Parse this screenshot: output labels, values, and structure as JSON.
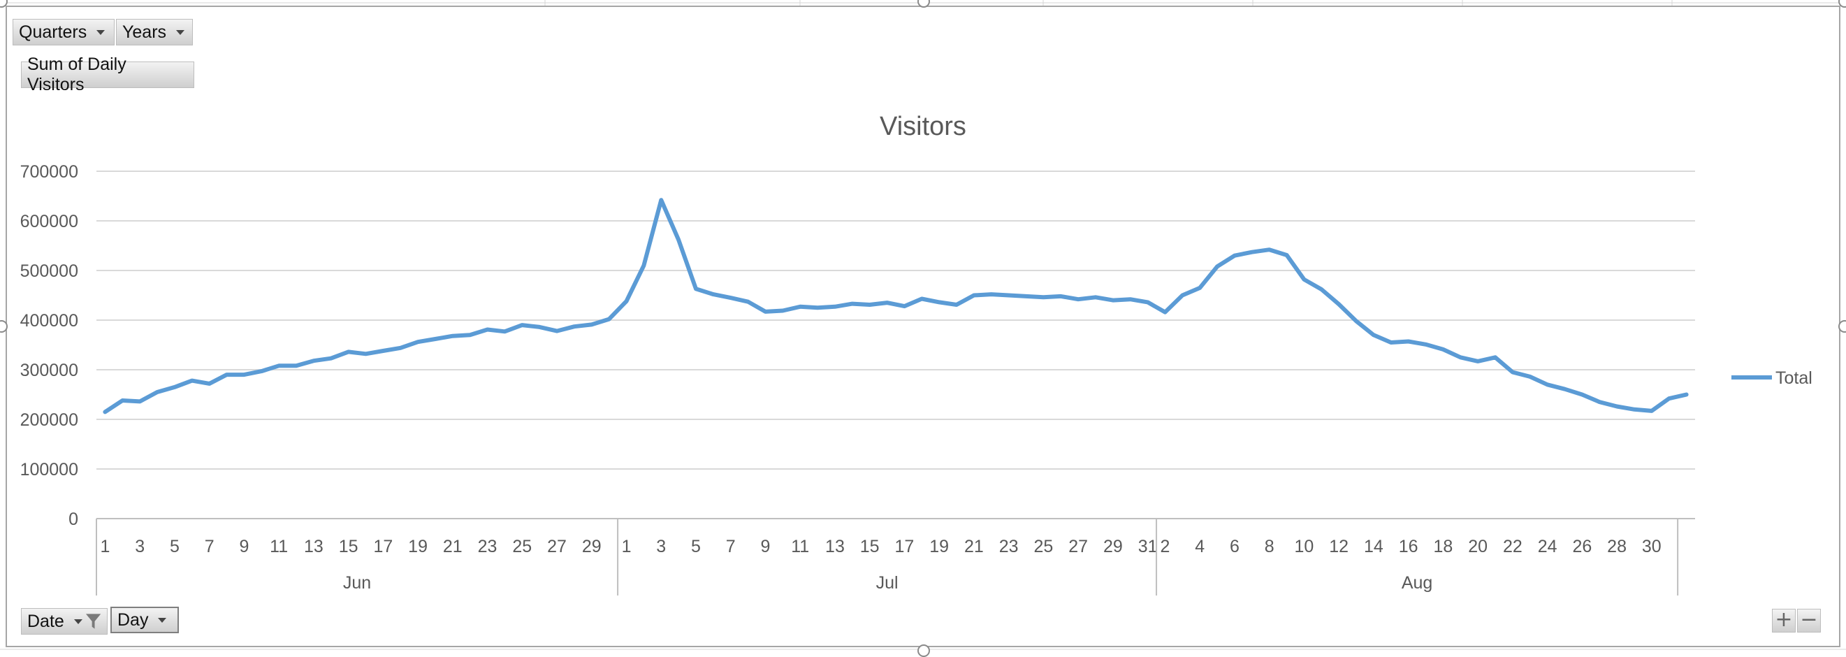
{
  "pivot_fields": {
    "quarters_label": "Quarters",
    "years_label": "Years",
    "values_label": "Sum of Daily Visitors",
    "date_label": "Date",
    "day_label": "Day"
  },
  "zoom": {
    "plus": "+",
    "minus": "−"
  },
  "colors": {
    "series": "#5b9bd5",
    "grid": "#d9d9d9",
    "axis_text": "#595959",
    "title": "#595959"
  },
  "chart_data": {
    "type": "line",
    "title": "Visitors",
    "xlabel": "",
    "ylabel": "",
    "ylim": [
      0,
      700000
    ],
    "yticks": [
      0,
      100000,
      200000,
      300000,
      400000,
      500000,
      600000,
      700000
    ],
    "grid": true,
    "legend_position": "right",
    "groups": [
      {
        "label": "Jun",
        "start": 1,
        "days": 30
      },
      {
        "label": "Jul",
        "start": 1,
        "days": 31
      },
      {
        "label": "Aug",
        "start": 2,
        "days": 30
      }
    ],
    "series": [
      {
        "name": "Total",
        "values": [
          215000,
          238000,
          236000,
          255000,
          265000,
          278000,
          272000,
          290000,
          290000,
          297000,
          308000,
          308000,
          318000,
          323000,
          336000,
          332000,
          338000,
          344000,
          356000,
          362000,
          368000,
          370000,
          381000,
          377000,
          390000,
          386000,
          378000,
          387000,
          391000,
          402000,
          438000,
          510000,
          642000,
          562000,
          463000,
          452000,
          445000,
          437000,
          417000,
          419000,
          427000,
          425000,
          427000,
          433000,
          431000,
          435000,
          428000,
          443000,
          436000,
          431000,
          450000,
          452000,
          450000,
          448000,
          446000,
          448000,
          442000,
          446000,
          440000,
          442000,
          436000,
          416000,
          450000,
          465000,
          508000,
          530000,
          537000,
          542000,
          531000,
          482000,
          462000,
          432000,
          398000,
          370000,
          355000,
          357000,
          351000,
          341000,
          325000,
          317000,
          325000,
          295000,
          286000,
          270000,
          261000,
          250000,
          235000,
          226000,
          220000,
          217000,
          242000,
          250000
        ]
      }
    ]
  }
}
